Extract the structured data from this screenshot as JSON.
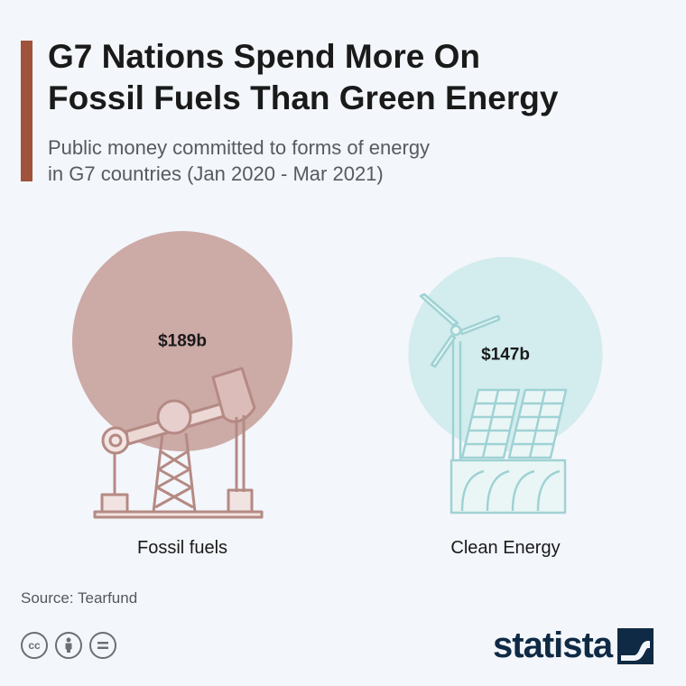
{
  "title_lines": [
    "G7 Nations Spend More On",
    "Fossil Fuels Than Green Energy"
  ],
  "subtitle_lines": [
    "Public money committed to forms of energy",
    "in G7 countries (Jan 2020 - Mar 2021)"
  ],
  "source": "Source: Tearfund",
  "logo_text": "statista",
  "icons": {
    "cc": "creative-commons-icon",
    "by": "attribution-icon",
    "nd": "no-derivatives-icon",
    "fossil": "oil-pump-icon",
    "clean": "wind-solar-icon"
  },
  "colors": {
    "accent": "#a0523a",
    "fossil_bubble": "#ccaaa6",
    "fossil_icon": "#b58a84",
    "clean_bubble": "#d3ecee",
    "clean_icon": "#9fd2d4",
    "logo": "#0f2a44"
  },
  "chart_data": {
    "type": "bubble",
    "title": "G7 Nations Spend More On Fossil Fuels Than Green Energy",
    "subtitle": "Public money committed to forms of energy in G7 countries (Jan 2020 - Mar 2021)",
    "unit": "billion USD",
    "categories": [
      "Fossil fuels",
      "Clean Energy"
    ],
    "values": [
      189,
      147
    ],
    "value_labels": [
      "$189b",
      "$147b"
    ]
  }
}
